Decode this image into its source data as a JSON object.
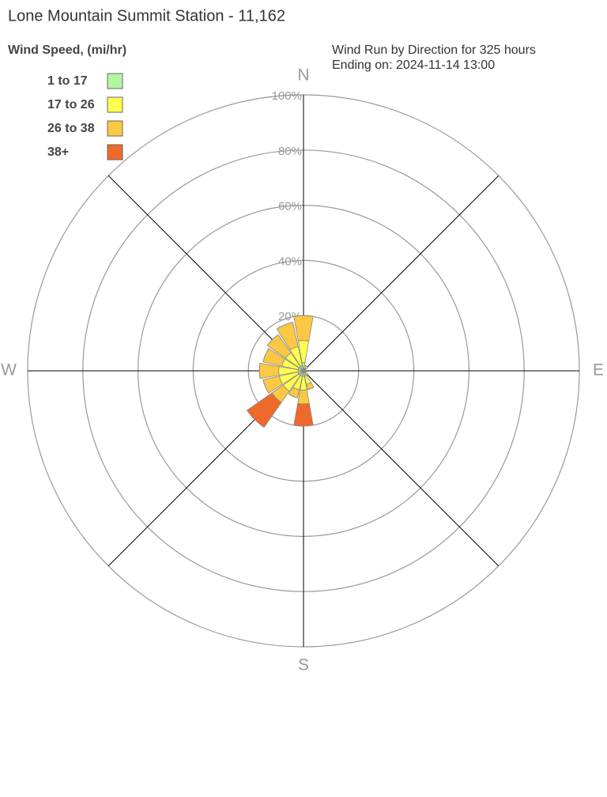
{
  "chart_data": {
    "type": "windrose",
    "title": "Lone Mountain Summit Station - 11,162",
    "legend_title": "Wind Speed, (mi/hr)",
    "subtitle": [
      "Wind Run by Direction for 325 hours",
      "Ending on: 2024-11-14 13:00"
    ],
    "categories": [
      "N",
      null,
      null,
      null,
      "E",
      null,
      null,
      null,
      "S",
      null,
      null,
      null,
      "W",
      null,
      null,
      null
    ],
    "series": [
      {
        "name": "1 to 17",
        "color": "#b3f5a0",
        "values": [
          3,
          1,
          1,
          1,
          1,
          1,
          1,
          2,
          2,
          2,
          2,
          2,
          2,
          2,
          2,
          2
        ]
      },
      {
        "name": "17 to 26",
        "color": "#ffff4d",
        "values": [
          8,
          1,
          1,
          0,
          0,
          0,
          1,
          3,
          5,
          5,
          7,
          7,
          7,
          6,
          6,
          7
        ]
      },
      {
        "name": "26 to 38",
        "color": "#fac843",
        "values": [
          9,
          0,
          0,
          0,
          0,
          0,
          0,
          2,
          5,
          3,
          5,
          6,
          7,
          7,
          8,
          9
        ]
      },
      {
        "name": "38+",
        "color": "#ee6a2a",
        "values": [
          0,
          0,
          0,
          0,
          0,
          0,
          0,
          0,
          8,
          0,
          11,
          0,
          0,
          0,
          0,
          0
        ]
      }
    ],
    "rlim": [
      0,
      100
    ],
    "rticks": [
      {
        "value": 20,
        "label": "20%"
      },
      {
        "value": 40,
        "label": "40%"
      },
      {
        "value": 60,
        "label": "60%"
      },
      {
        "value": 80,
        "label": "80%"
      },
      {
        "value": 100,
        "label": "100%"
      }
    ]
  }
}
